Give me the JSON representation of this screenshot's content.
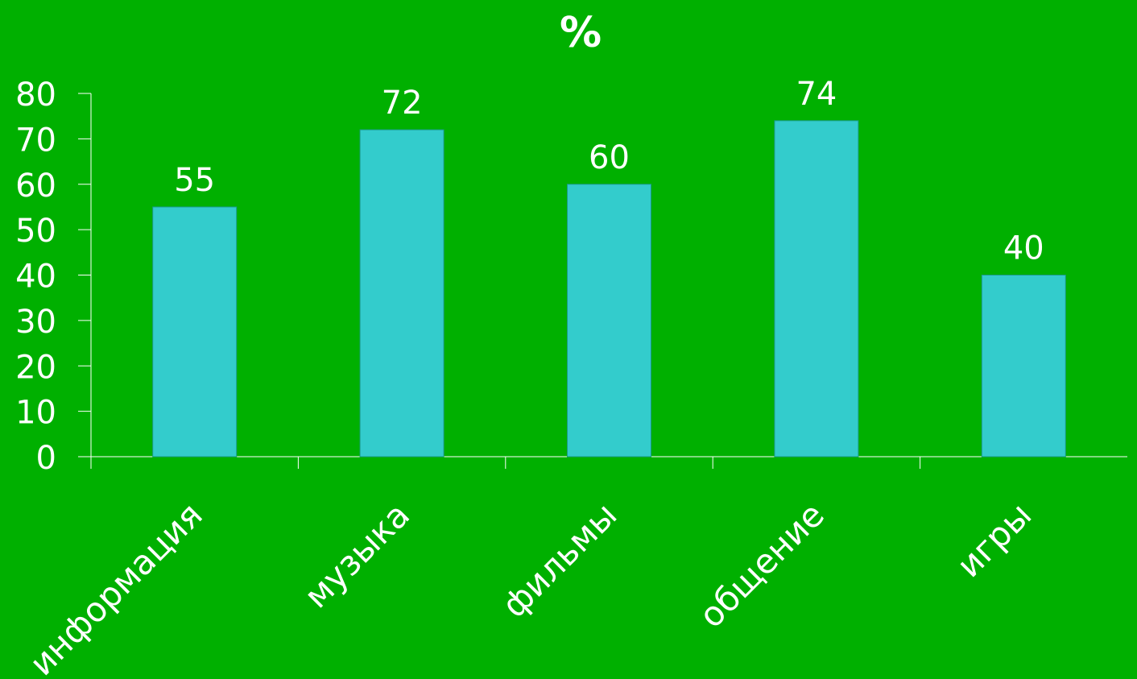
{
  "chart_data": {
    "type": "bar",
    "title": "%",
    "categories": [
      "информация",
      "музыка",
      "фильмы",
      "общение",
      "игры"
    ],
    "values": [
      55,
      72,
      60,
      74,
      40
    ],
    "ylim": [
      0,
      80
    ],
    "yticks": [
      0,
      10,
      20,
      30,
      40,
      50,
      60,
      70,
      80
    ],
    "data_labels": [
      "55",
      "72",
      "60",
      "74",
      "40"
    ],
    "grid": false,
    "legend": "none"
  },
  "colors": {
    "background": "#00b000",
    "bar_fill": "#33cccc",
    "text": "#ffffff"
  }
}
